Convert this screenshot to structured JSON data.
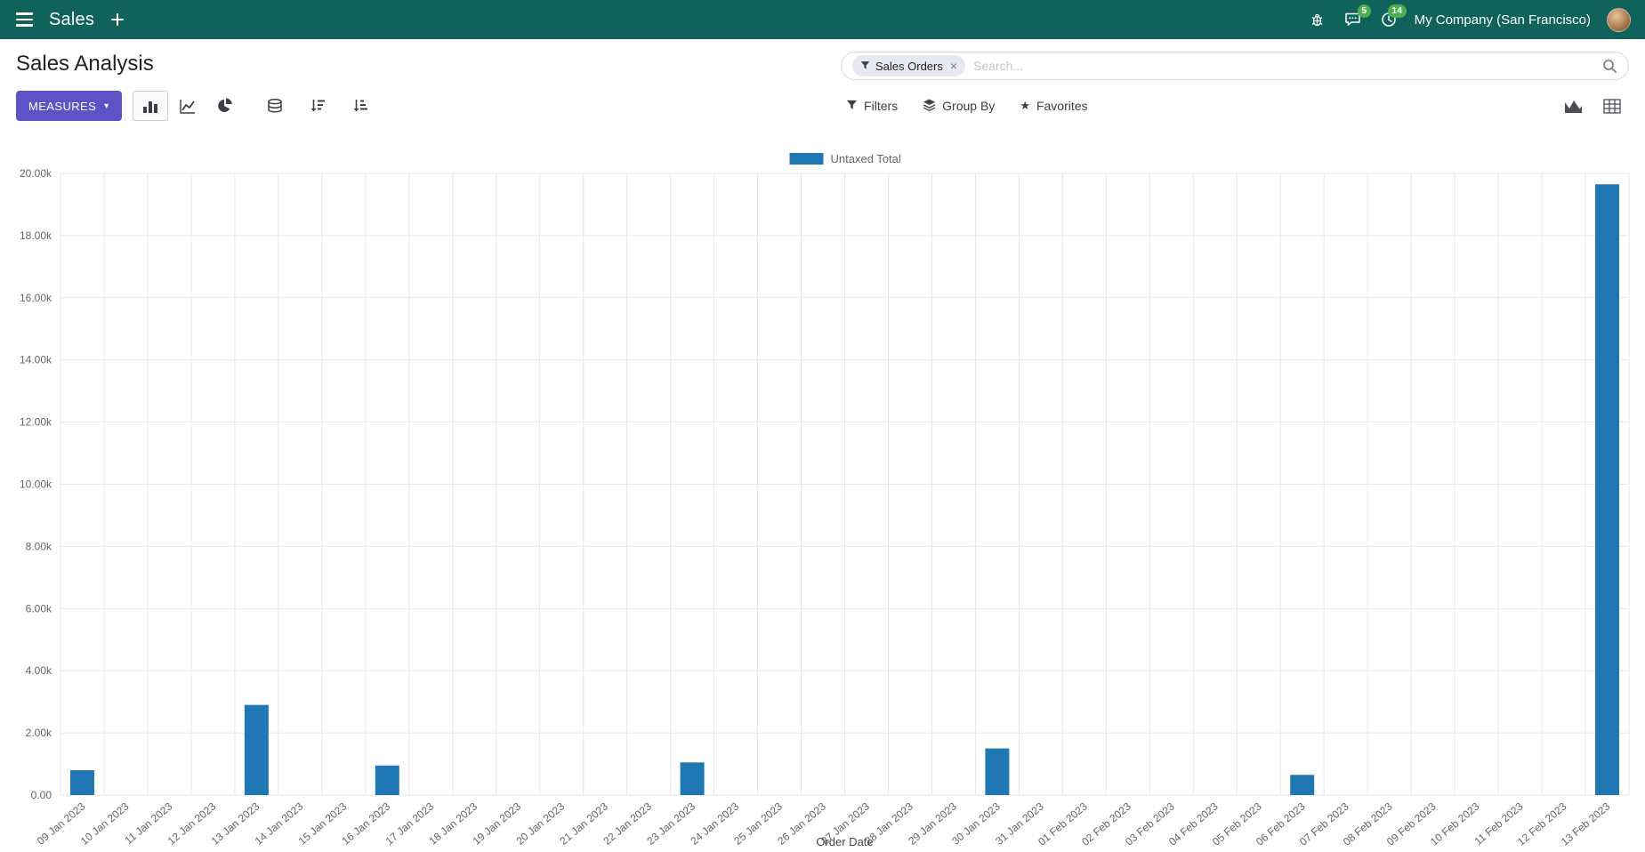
{
  "topbar": {
    "app_name": "Sales",
    "messages_badge": "5",
    "activities_badge": "14",
    "company": "My Company (San Francisco)"
  },
  "control_panel": {
    "title": "Sales Analysis",
    "measures_label": "MEASURES",
    "filters_label": "Filters",
    "group_by_label": "Group By",
    "favorites_label": "Favorites",
    "search": {
      "facet": "Sales Orders",
      "placeholder": "Search..."
    }
  },
  "icons": {
    "caret_down": "▾",
    "close": "×",
    "star": "★"
  },
  "colors": {
    "topbar_bg": "#0f635a",
    "primary_button": "#5E53C6",
    "badge_green": "#4caf50",
    "bar_blue": "#1f77b4"
  },
  "chart_data": {
    "type": "bar",
    "title": "",
    "xlabel": "Order Date",
    "ylabel": "",
    "legend": [
      "Untaxed Total"
    ],
    "legend_position": "top",
    "bar_color": "#1f77b4",
    "grid": true,
    "ylim": [
      0,
      20000
    ],
    "ytick_step": 2000,
    "ytick_labels": [
      "0.00",
      "2.00k",
      "4.00k",
      "6.00k",
      "8.00k",
      "10.00k",
      "12.00k",
      "14.00k",
      "16.00k",
      "18.00k",
      "20.00k"
    ],
    "categories": [
      "09 Jan 2023",
      "10 Jan 2023",
      "11 Jan 2023",
      "12 Jan 2023",
      "13 Jan 2023",
      "14 Jan 2023",
      "15 Jan 2023",
      "16 Jan 2023",
      "17 Jan 2023",
      "18 Jan 2023",
      "19 Jan 2023",
      "20 Jan 2023",
      "21 Jan 2023",
      "22 Jan 2023",
      "23 Jan 2023",
      "24 Jan 2023",
      "25 Jan 2023",
      "26 Jan 2023",
      "27 Jan 2023",
      "28 Jan 2023",
      "29 Jan 2023",
      "30 Jan 2023",
      "31 Jan 2023",
      "01 Feb 2023",
      "02 Feb 2023",
      "03 Feb 2023",
      "04 Feb 2023",
      "05 Feb 2023",
      "06 Feb 2023",
      "07 Feb 2023",
      "08 Feb 2023",
      "09 Feb 2023",
      "10 Feb 2023",
      "11 Feb 2023",
      "12 Feb 2023",
      "13 Feb 2023"
    ],
    "values": [
      800,
      0,
      0,
      0,
      2900,
      0,
      0,
      950,
      0,
      0,
      0,
      0,
      0,
      0,
      1050,
      0,
      0,
      0,
      0,
      0,
      0,
      1500,
      0,
      0,
      0,
      0,
      0,
      0,
      650,
      0,
      0,
      0,
      0,
      0,
      0,
      19650
    ]
  }
}
